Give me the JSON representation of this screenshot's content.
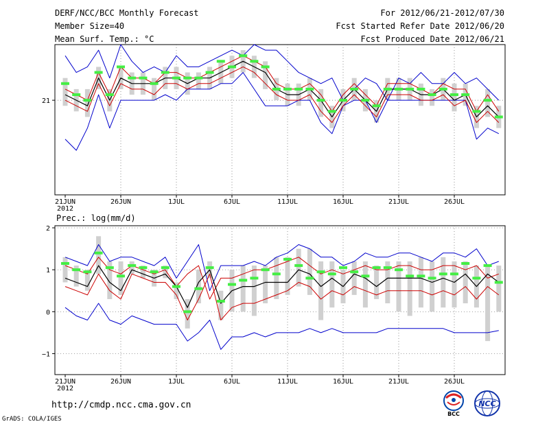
{
  "header": {
    "left": [
      "DERF/NCC/BCC Monthly Forecast",
      "Member Size=40",
      "Mean Surf. Temp.: °C"
    ],
    "right": [
      "For 2012/06/21-2012/07/30",
      "Fcst Started Refer Date 2012/06/20",
      "Fcst Produced Date 2012/06/21"
    ]
  },
  "footer": {
    "url": "http://cmdp.ncc.cma.gov.cn",
    "credit": "GrADS: COLA/IGES"
  },
  "logos": {
    "bcc_text": "BCC",
    "ncc_text": "NCC"
  },
  "colors": {
    "envelope": "#0000cc",
    "spread": "#cc0000",
    "mean": "#000000",
    "box": "#d0d0d0",
    "marker": "#44ee44",
    "grid": "#666666"
  },
  "chart_data": [
    {
      "type": "line",
      "title": "Mean Surf. Temp.: °C",
      "ylabel": "°C",
      "ylim": [
        19.3,
        22.0
      ],
      "yticks": [
        21
      ],
      "ytick_labels": [
        "21"
      ],
      "x_ticks": [
        {
          "day": 1,
          "label": "21JUN",
          "sub": "2012"
        },
        {
          "day": 6,
          "label": "26JUN"
        },
        {
          "day": 11,
          "label": "1JUL"
        },
        {
          "day": 16,
          "label": "6JUL"
        },
        {
          "day": 21,
          "label": "11JUL"
        },
        {
          "day": 26,
          "label": "16JUL"
        },
        {
          "day": 31,
          "label": "21JUL"
        },
        {
          "day": 36,
          "label": "26JUL"
        }
      ],
      "series": [
        {
          "name": "max",
          "values": [
            21.8,
            21.5,
            21.6,
            21.9,
            21.4,
            22.0,
            21.7,
            21.5,
            21.6,
            21.5,
            21.8,
            21.6,
            21.6,
            21.7,
            21.8,
            21.9,
            21.8,
            22.0,
            21.9,
            21.9,
            21.7,
            21.5,
            21.4,
            21.3,
            21.4,
            21.0,
            21.2,
            21.4,
            21.3,
            21.0,
            21.4,
            21.3,
            21.5,
            21.3,
            21.3,
            21.5,
            21.3,
            21.4,
            21.2,
            21.0
          ]
        },
        {
          "name": "upper",
          "values": [
            21.2,
            21.1,
            21.0,
            21.5,
            21.1,
            21.6,
            21.4,
            21.4,
            21.3,
            21.5,
            21.5,
            21.4,
            21.4,
            21.5,
            21.6,
            21.7,
            21.8,
            21.7,
            21.6,
            21.3,
            21.2,
            21.2,
            21.3,
            21.1,
            20.8,
            21.1,
            21.3,
            21.1,
            20.9,
            21.3,
            21.3,
            21.3,
            21.2,
            21.1,
            21.3,
            21.2,
            21.2,
            20.8,
            21.1,
            20.8
          ]
        },
        {
          "name": "mean",
          "values": [
            21.1,
            21.0,
            20.9,
            21.4,
            21.0,
            21.4,
            21.3,
            21.3,
            21.3,
            21.4,
            21.4,
            21.3,
            21.4,
            21.4,
            21.5,
            21.6,
            21.7,
            21.6,
            21.5,
            21.2,
            21.1,
            21.1,
            21.2,
            21.0,
            20.7,
            21.0,
            21.2,
            21.0,
            20.8,
            21.2,
            21.2,
            21.2,
            21.1,
            21.1,
            21.2,
            21.0,
            21.1,
            20.7,
            20.9,
            20.7
          ]
        },
        {
          "name": "lower",
          "values": [
            21.0,
            20.9,
            20.8,
            21.3,
            20.9,
            21.3,
            21.2,
            21.2,
            21.1,
            21.3,
            21.3,
            21.2,
            21.3,
            21.3,
            21.4,
            21.5,
            21.6,
            21.5,
            21.3,
            21.1,
            21.0,
            21.0,
            21.1,
            20.8,
            20.6,
            20.9,
            21.1,
            20.9,
            20.7,
            21.1,
            21.1,
            21.1,
            21.0,
            21.0,
            21.1,
            20.9,
            21.0,
            20.6,
            20.8,
            20.6
          ]
        },
        {
          "name": "min",
          "values": [
            20.3,
            20.1,
            20.5,
            21.1,
            20.5,
            21.0,
            21.0,
            21.0,
            21.0,
            21.1,
            21.0,
            21.2,
            21.2,
            21.2,
            21.3,
            21.3,
            21.5,
            21.2,
            20.9,
            20.9,
            20.9,
            21.0,
            21.0,
            20.6,
            20.4,
            20.9,
            21.0,
            21.0,
            20.6,
            21.0,
            21.0,
            21.0,
            21.0,
            21.0,
            21.0,
            21.0,
            21.0,
            20.3,
            20.5,
            20.4
          ]
        },
        {
          "name": "member_box_high",
          "values": [
            21.4,
            21.2,
            21.2,
            21.6,
            21.2,
            21.6,
            21.5,
            21.5,
            21.4,
            21.6,
            21.6,
            21.5,
            21.5,
            21.6,
            21.7,
            21.8,
            21.9,
            21.8,
            21.7,
            21.4,
            21.3,
            21.3,
            21.4,
            21.2,
            20.9,
            21.2,
            21.4,
            21.2,
            21.0,
            21.4,
            21.4,
            21.4,
            21.3,
            21.2,
            21.4,
            21.3,
            21.3,
            20.9,
            21.2,
            20.9
          ]
        },
        {
          "name": "member_box_low",
          "values": [
            20.9,
            20.8,
            20.7,
            21.2,
            20.8,
            21.2,
            21.1,
            21.1,
            21.0,
            21.2,
            21.2,
            21.1,
            21.2,
            21.2,
            21.3,
            21.4,
            21.5,
            21.4,
            21.2,
            21.0,
            20.9,
            20.9,
            21.0,
            20.7,
            20.5,
            20.8,
            21.0,
            20.8,
            20.6,
            21.0,
            21.0,
            21.0,
            20.9,
            20.9,
            21.0,
            20.8,
            20.9,
            20.5,
            20.7,
            20.5
          ]
        },
        {
          "name": "markers",
          "values": [
            21.3,
            21.1,
            21.0,
            21.5,
            21.1,
            21.6,
            21.4,
            21.4,
            21.3,
            21.5,
            21.4,
            21.4,
            21.4,
            21.5,
            21.7,
            21.6,
            21.8,
            21.7,
            21.6,
            21.2,
            21.2,
            21.2,
            21.2,
            21.0,
            20.8,
            21.0,
            21.2,
            21.0,
            20.9,
            21.2,
            21.2,
            21.2,
            21.2,
            21.1,
            21.2,
            21.1,
            21.1,
            20.8,
            21.0,
            20.7
          ]
        }
      ]
    },
    {
      "type": "line",
      "title": "Prec.: log(mm/d)",
      "ylabel": "log(mm/d)",
      "ylim": [
        -1.5,
        2.05
      ],
      "yticks": [
        -1,
        0,
        1,
        2
      ],
      "ytick_labels": [
        "−1",
        "0",
        "1",
        "2"
      ],
      "x_ticks": [
        {
          "day": 1,
          "label": "21JUN",
          "sub": "2012"
        },
        {
          "day": 6,
          "label": "26JUN"
        },
        {
          "day": 11,
          "label": "1JUL"
        },
        {
          "day": 16,
          "label": "6JUL"
        },
        {
          "day": 21,
          "label": "11JUL"
        },
        {
          "day": 26,
          "label": "16JUL"
        },
        {
          "day": 31,
          "label": "21JUL"
        },
        {
          "day": 36,
          "label": "26JUL"
        }
      ],
      "series": [
        {
          "name": "max",
          "values": [
            1.3,
            1.2,
            1.1,
            1.6,
            1.2,
            1.3,
            1.3,
            1.2,
            1.1,
            1.3,
            0.8,
            1.2,
            1.6,
            0.5,
            1.1,
            1.1,
            1.1,
            1.2,
            1.1,
            1.3,
            1.4,
            1.6,
            1.5,
            1.3,
            1.3,
            1.1,
            1.2,
            1.4,
            1.3,
            1.3,
            1.4,
            1.4,
            1.3,
            1.2,
            1.4,
            1.4,
            1.3,
            1.5,
            1.1,
            1.2
          ]
        },
        {
          "name": "upper",
          "values": [
            1.1,
            1.0,
            0.9,
            1.3,
            1.0,
            0.9,
            1.1,
            1.0,
            0.9,
            1.0,
            0.6,
            0.9,
            1.1,
            0.3,
            0.8,
            0.8,
            0.9,
            1.0,
            1.0,
            1.1,
            1.2,
            1.3,
            1.1,
            0.9,
            1.0,
            0.9,
            1.0,
            1.1,
            1.0,
            1.0,
            1.1,
            1.1,
            1.0,
            1.0,
            1.1,
            1.1,
            1.0,
            1.1,
            0.8,
            0.9
          ]
        },
        {
          "name": "mean",
          "values": [
            0.8,
            0.7,
            0.6,
            1.1,
            0.7,
            0.5,
            1.0,
            0.9,
            0.8,
            0.9,
            0.6,
            0.1,
            0.7,
            1.0,
            0.2,
            0.5,
            0.6,
            0.6,
            0.7,
            0.7,
            0.7,
            1.0,
            0.9,
            0.6,
            0.8,
            0.6,
            0.9,
            0.8,
            0.6,
            0.8,
            0.8,
            0.8,
            0.8,
            0.7,
            0.8,
            0.7,
            0.9,
            0.6,
            0.9,
            0.7
          ]
        },
        {
          "name": "lower",
          "values": [
            0.6,
            0.5,
            0.4,
            0.9,
            0.5,
            0.3,
            0.9,
            0.8,
            0.7,
            0.7,
            0.4,
            -0.2,
            0.3,
            0.9,
            -0.2,
            0.1,
            0.2,
            0.2,
            0.3,
            0.4,
            0.5,
            0.7,
            0.6,
            0.3,
            0.5,
            0.4,
            0.6,
            0.5,
            0.4,
            0.5,
            0.5,
            0.5,
            0.5,
            0.4,
            0.5,
            0.4,
            0.6,
            0.3,
            0.6,
            0.4
          ]
        },
        {
          "name": "min",
          "values": [
            0.1,
            -0.1,
            -0.2,
            0.2,
            -0.2,
            -0.3,
            -0.1,
            -0.2,
            -0.3,
            -0.3,
            -0.3,
            -0.7,
            -0.5,
            -0.2,
            -0.9,
            -0.6,
            -0.6,
            -0.5,
            -0.6,
            -0.5,
            -0.5,
            -0.5,
            -0.4,
            -0.5,
            -0.4,
            -0.5,
            -0.5,
            -0.5,
            -0.5,
            -0.4,
            -0.4,
            -0.4,
            -0.4,
            -0.4,
            -0.4,
            -0.5,
            -0.5,
            -0.5,
            -0.5,
            -0.45
          ]
        },
        {
          "name": "member_box_high",
          "values": [
            1.3,
            1.1,
            1.0,
            1.8,
            1.2,
            1.2,
            1.2,
            1.1,
            1.0,
            1.1,
            0.7,
            0.3,
            1.0,
            1.2,
            0.5,
            1.0,
            1.1,
            1.1,
            1.1,
            1.3,
            1.3,
            1.5,
            1.5,
            1.2,
            1.2,
            1.0,
            1.2,
            1.2,
            1.1,
            1.2,
            1.2,
            1.2,
            1.3,
            1.2,
            1.3,
            1.2,
            1.2,
            1.1,
            1.1,
            1.1
          ]
        },
        {
          "name": "member_box_low",
          "values": [
            0.7,
            0.6,
            0.5,
            0.9,
            0.3,
            0.4,
            0.9,
            0.8,
            0.6,
            0.8,
            0.3,
            -0.4,
            0.2,
            0.8,
            -0.2,
            0.0,
            0.0,
            -0.1,
            0.2,
            0.3,
            0.4,
            0.6,
            0.4,
            -0.2,
            0.1,
            0.2,
            0.4,
            0.1,
            0.3,
            0.2,
            0.0,
            -0.1,
            0.1,
            0.0,
            0.1,
            0.1,
            0.2,
            0.1,
            -0.7,
            0.0
          ]
        },
        {
          "name": "markers",
          "values": [
            1.15,
            1.0,
            0.95,
            1.4,
            1.05,
            0.85,
            1.1,
            1.05,
            0.95,
            1.05,
            0.6,
            0.0,
            0.55,
            1.05,
            0.25,
            0.65,
            0.75,
            0.8,
            1.0,
            0.9,
            1.25,
            1.1,
            0.8,
            0.95,
            0.9,
            1.05,
            0.95,
            0.85,
            1.05,
            1.05,
            1.0,
            0.85,
            0.85,
            0.8,
            0.9,
            0.9,
            1.15,
            0.8,
            1.1,
            0.7
          ]
        }
      ]
    }
  ]
}
